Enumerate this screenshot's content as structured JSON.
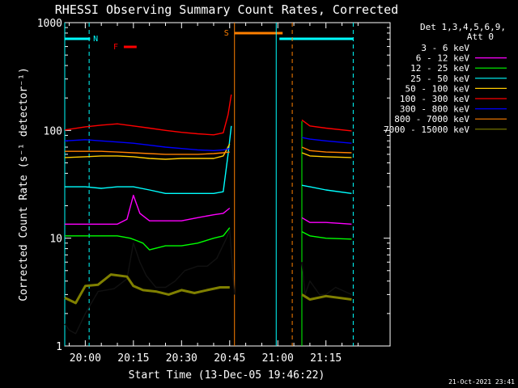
{
  "chart_data": {
    "type": "line",
    "title": "RHESSI Observing Summary Count Rates, Corrected",
    "xlabel": "Start Time (13-Dec-05 19:46:22)",
    "ylabel": "Corrected Count Rate (s⁻¹ detector⁻¹)",
    "y_scale": "log",
    "ylim": [
      1,
      1000
    ],
    "xlim_minutes": [
      -6.4,
      95
    ],
    "x_ticks": [
      {
        "m": 0,
        "label": "20:00"
      },
      {
        "m": 15,
        "label": "20:15"
      },
      {
        "m": 30,
        "label": "20:30"
      },
      {
        "m": 45,
        "label": "20:45"
      },
      {
        "m": 60,
        "label": "21:00"
      },
      {
        "m": 75,
        "label": "21:15"
      }
    ],
    "y_ticks": [
      {
        "v": 1,
        "label": "1"
      },
      {
        "v": 10,
        "label": "10"
      },
      {
        "v": 100,
        "label": "100"
      },
      {
        "v": 1000,
        "label": "1000"
      }
    ],
    "legend": {
      "position": "right",
      "header_line1": "Det 1,3,4,5,6,9,",
      "header_line2": "Att 0"
    },
    "series": [
      {
        "name": "3 - 6 keV",
        "color": "#000000",
        "points": [
          [
            -6.4,
            1.6
          ],
          [
            -5,
            1.4
          ],
          [
            -3,
            1.3
          ],
          [
            0,
            2.0
          ],
          [
            4,
            3.2
          ],
          [
            9,
            3.4
          ],
          [
            13,
            4.2
          ],
          [
            15,
            9.0
          ],
          [
            17,
            6.0
          ],
          [
            19,
            4.5
          ],
          [
            22,
            3.5
          ],
          [
            25,
            3.5
          ],
          [
            28,
            4.0
          ],
          [
            31,
            5.0
          ],
          [
            35,
            5.5
          ],
          [
            38,
            5.5
          ],
          [
            41,
            6.5
          ],
          [
            44,
            10.0
          ],
          [
            45,
            12.0
          ],
          [
            46.5,
            3.0
          ],
          [
            67.5,
            null
          ],
          [
            67.5,
            6.0
          ],
          [
            68.5,
            3.0
          ],
          [
            70,
            4.0
          ],
          [
            73,
            3.0
          ],
          [
            75,
            3.0
          ],
          [
            78,
            3.5
          ],
          [
            83,
            3.0
          ]
        ]
      },
      {
        "name": "6 - 12 keV",
        "color": "#ff00ff",
        "points": [
          [
            -6.4,
            13.5
          ],
          [
            0,
            13.5
          ],
          [
            10,
            13.5
          ],
          [
            13,
            15.0
          ],
          [
            15,
            25.0
          ],
          [
            17,
            17.0
          ],
          [
            20,
            14.5
          ],
          [
            25,
            14.5
          ],
          [
            30,
            14.5
          ],
          [
            35,
            15.5
          ],
          [
            40,
            16.5
          ],
          [
            43,
            17.0
          ],
          [
            45,
            19.0
          ],
          [
            46.5,
            null
          ],
          [
            67.5,
            15.5
          ],
          [
            70,
            14.0
          ],
          [
            75,
            14.0
          ],
          [
            83,
            13.5
          ]
        ]
      },
      {
        "name": "12 - 25 keV",
        "color": "#00ff00",
        "points": [
          [
            -6.4,
            10.5
          ],
          [
            0,
            10.5
          ],
          [
            10,
            10.5
          ],
          [
            14,
            10.0
          ],
          [
            16,
            9.5
          ],
          [
            18,
            9.0
          ],
          [
            20,
            7.8
          ],
          [
            25,
            8.5
          ],
          [
            30,
            8.5
          ],
          [
            35,
            9.0
          ],
          [
            40,
            10.0
          ],
          [
            43,
            10.5
          ],
          [
            45,
            12.5
          ],
          [
            46.5,
            null
          ],
          [
            67.5,
            11.5
          ],
          [
            70,
            10.5
          ],
          [
            75,
            10.0
          ],
          [
            83,
            9.8
          ]
        ]
      },
      {
        "name": "25 - 50 keV",
        "color": "#00ffff",
        "points": [
          [
            -6.4,
            30.0
          ],
          [
            0,
            30.0
          ],
          [
            5,
            29.0
          ],
          [
            10,
            30.0
          ],
          [
            15,
            30.0
          ],
          [
            20,
            28.0
          ],
          [
            25,
            26.0
          ],
          [
            30,
            26.0
          ],
          [
            35,
            26.0
          ],
          [
            40,
            26.0
          ],
          [
            43,
            27.0
          ],
          [
            44.5,
            60.0
          ],
          [
            45.5,
            110.0
          ],
          [
            46.5,
            null
          ],
          [
            67.5,
            31.0
          ],
          [
            70,
            30.0
          ],
          [
            75,
            28.0
          ],
          [
            83,
            26.0
          ]
        ]
      },
      {
        "name": "50 - 100 keV",
        "color": "#ffcc00",
        "points": [
          [
            -6.4,
            56.0
          ],
          [
            0,
            57.0
          ],
          [
            5,
            58.0
          ],
          [
            10,
            58.0
          ],
          [
            15,
            57.0
          ],
          [
            20,
            55.0
          ],
          [
            25,
            54.0
          ],
          [
            30,
            55.0
          ],
          [
            35,
            55.0
          ],
          [
            40,
            55.0
          ],
          [
            43,
            58.0
          ],
          [
            45,
            75.0
          ],
          [
            46.5,
            null
          ],
          [
            67.5,
            62.0
          ],
          [
            70,
            58.0
          ],
          [
            75,
            57.0
          ],
          [
            83,
            56.0
          ]
        ]
      },
      {
        "name": "100 - 300 keV",
        "color": "#ff0000",
        "points": [
          [
            -6.4,
            101.0
          ],
          [
            0,
            108.0
          ],
          [
            5,
            112.0
          ],
          [
            10,
            115.0
          ],
          [
            15,
            110.0
          ],
          [
            20,
            105.0
          ],
          [
            25,
            100.0
          ],
          [
            30,
            96.0
          ],
          [
            35,
            93.0
          ],
          [
            40,
            91.0
          ],
          [
            43,
            95.0
          ],
          [
            44.5,
            140.0
          ],
          [
            45.5,
            215.0
          ],
          [
            46.5,
            null
          ],
          [
            67.5,
            125.0
          ],
          [
            70,
            110.0
          ],
          [
            75,
            105.0
          ],
          [
            83,
            99.0
          ]
        ]
      },
      {
        "name": "300 - 800 keV",
        "color": "#0000ff",
        "points": [
          [
            -6.4,
            80.0
          ],
          [
            0,
            82.0
          ],
          [
            5,
            80.0
          ],
          [
            10,
            78.0
          ],
          [
            15,
            76.0
          ],
          [
            20,
            73.0
          ],
          [
            25,
            70.0
          ],
          [
            30,
            68.0
          ],
          [
            35,
            66.0
          ],
          [
            40,
            65.0
          ],
          [
            43,
            66.0
          ],
          [
            45,
            68.0
          ],
          [
            46.5,
            null
          ],
          [
            67.5,
            86.0
          ],
          [
            70,
            83.0
          ],
          [
            75,
            80.0
          ],
          [
            83,
            76.0
          ]
        ]
      },
      {
        "name": "800 - 7000 keV",
        "color": "#ff8000",
        "points": [
          [
            -6.4,
            64.0
          ],
          [
            0,
            64.0
          ],
          [
            5,
            64.0
          ],
          [
            10,
            63.0
          ],
          [
            15,
            62.0
          ],
          [
            20,
            61.0
          ],
          [
            25,
            60.0
          ],
          [
            30,
            60.0
          ],
          [
            35,
            60.0
          ],
          [
            40,
            61.0
          ],
          [
            43,
            62.0
          ],
          [
            45,
            63.0
          ],
          [
            46.5,
            null
          ],
          [
            67.5,
            70.0
          ],
          [
            70,
            65.0
          ],
          [
            75,
            63.0
          ],
          [
            83,
            62.0
          ]
        ]
      },
      {
        "name": "7000 - 15000 keV",
        "color": "#808000",
        "points": [
          [
            -6.4,
            2.8
          ],
          [
            -3,
            2.5
          ],
          [
            0,
            3.6
          ],
          [
            4,
            3.7
          ],
          [
            8,
            4.6
          ],
          [
            13,
            4.4
          ],
          [
            15,
            3.6
          ],
          [
            18,
            3.3
          ],
          [
            22,
            3.2
          ],
          [
            26,
            3.0
          ],
          [
            30,
            3.3
          ],
          [
            34,
            3.1
          ],
          [
            38,
            3.3
          ],
          [
            42,
            3.5
          ],
          [
            45,
            3.5
          ],
          [
            46.5,
            null
          ],
          [
            67.5,
            3.0
          ],
          [
            70,
            2.7
          ],
          [
            75,
            2.9
          ],
          [
            83,
            2.7
          ]
        ]
      }
    ],
    "flags": {
      "N_label": "N",
      "F_label": "F",
      "S_label": "S",
      "N_color": "#00ffff",
      "F_color": "#ff0000",
      "S_color": "#ff8000",
      "N_bars": [
        [
          -6.4,
          1.5
        ],
        [
          60.5,
          83.5
        ]
      ],
      "F_bar": [
        12,
        16
      ],
      "S_bar": [
        46.5,
        61.5
      ],
      "N_dashed_marks": [
        1.2,
        83.5
      ],
      "N_solid_marks": [
        59.5
      ],
      "S_solid_marks": [
        46.5
      ],
      "S_dashed_marks": [
        64.5
      ],
      "extra_solid_green_mark": [
        67.5
      ]
    },
    "grid": false
  },
  "footer": {
    "generated": "21-Oct-2021 23:41"
  }
}
